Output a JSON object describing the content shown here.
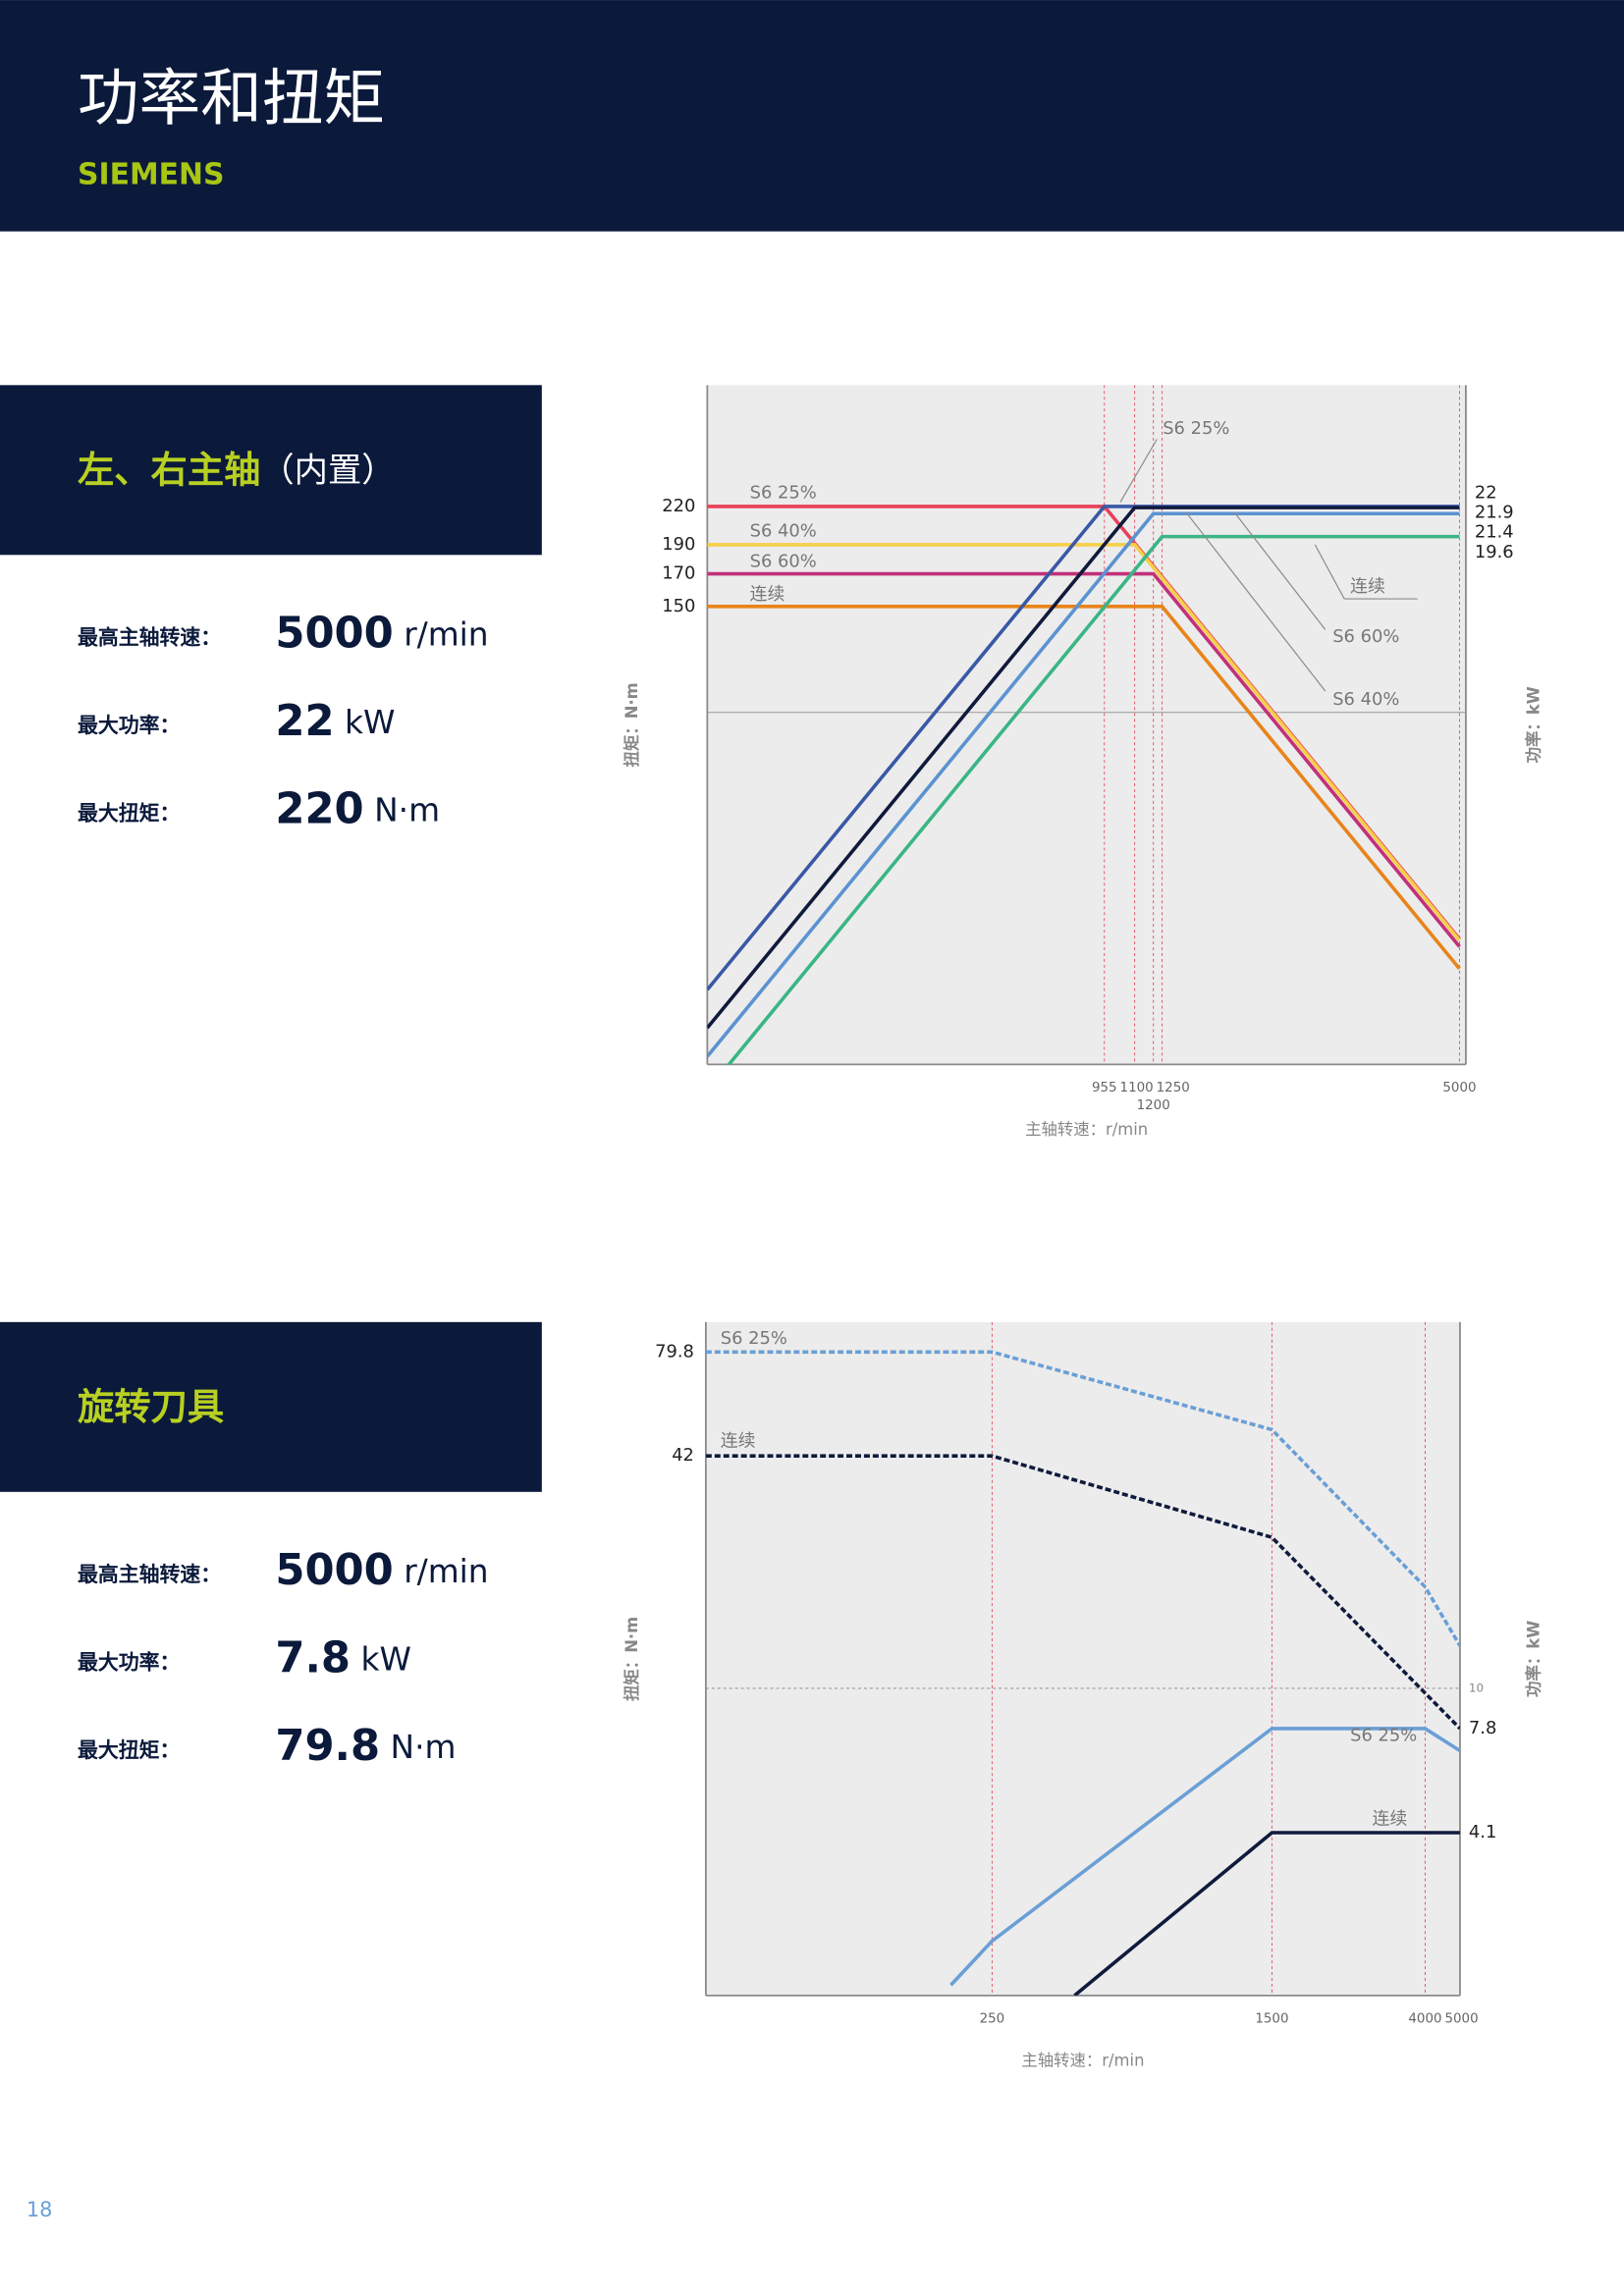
{
  "header": {
    "title": "功率和扭矩",
    "brand": "SIEMENS"
  },
  "sections": [
    {
      "title": "左、右主轴",
      "subtitle": "（内置）",
      "specs": [
        {
          "label": "最高主轴转速：",
          "value": 5000,
          "unit": "r/min"
        },
        {
          "label": "最大功率：",
          "value": 22,
          "unit": "kW"
        },
        {
          "label": "最大扭矩：",
          "value": 220,
          "unit": "N·m"
        }
      ]
    },
    {
      "title": "旋转刀具",
      "specs": [
        {
          "label": "最高主轴转速：",
          "value": 5000,
          "unit": "r/min"
        },
        {
          "label": "最大功率：",
          "value": 7.8,
          "unit": "kW"
        },
        {
          "label": "最大扭矩：",
          "value": 79.8,
          "unit": "N·m"
        }
      ]
    }
  ],
  "chart_data": [
    {
      "type": "line",
      "x_label": "主轴转速：r/min",
      "y_label": "扭矩：N·m",
      "y2_label": "功率：kW",
      "xscale": "log",
      "yscale": "log",
      "xlim": [
        150,
        5150
      ],
      "ylim": [
        26,
        350
      ],
      "y2lim": [
        2.6,
        35
      ],
      "xticks": [
        955,
        1100,
        1200,
        1250,
        5000
      ],
      "yticks": [
        150,
        170,
        190,
        220
      ],
      "y2ticks": [
        19.6,
        21.4,
        21.9,
        22
      ],
      "y2_gridlines": [
        10
      ],
      "series": [
        {
          "name": "S6 25%",
          "color": "#e8405a",
          "x": [
            150,
            955,
            5000
          ],
          "values": [
            220,
            220,
            42
          ]
        },
        {
          "name": "S6 40%",
          "color": "#f5cf48",
          "x": [
            150,
            1100,
            5000
          ],
          "values": [
            190,
            190,
            41.8
          ]
        },
        {
          "name": "S6 60%",
          "color": "#c2307a",
          "x": [
            150,
            1200,
            5000
          ],
          "values": [
            170,
            170,
            40.8
          ]
        },
        {
          "name": "连续",
          "color": "#e8841a",
          "x": [
            150,
            1250,
            5000
          ],
          "values": [
            150,
            150,
            37.5
          ]
        },
        {
          "name": "S6 25%",
          "color": "#3a58a6",
          "axis": "y2",
          "x": [
            150,
            955,
            5000
          ],
          "values": [
            3.46,
            22,
            22
          ]
        },
        {
          "name": "S6 40%",
          "color": "#101a3c",
          "axis": "y2",
          "x": [
            150,
            1100,
            5000
          ],
          "values": [
            2.99,
            21.9,
            21.9
          ]
        },
        {
          "name": "S6 60%",
          "color": "#5b93d0",
          "axis": "y2",
          "x": [
            150,
            1200,
            5000
          ],
          "values": [
            2.68,
            21.4,
            21.4
          ]
        },
        {
          "name": "连续",
          "color": "#3bb585",
          "axis": "y2",
          "x": [
            150,
            1250,
            5000
          ],
          "values": [
            2.35,
            19.6,
            19.6
          ]
        }
      ]
    },
    {
      "type": "line",
      "x_label": "主轴转速：r/min",
      "y_label": "扭矩：N·m",
      "y2_label": "功率：kW",
      "xscale": "log",
      "yscale": "log",
      "xlim": [
        40,
        5000
      ],
      "ylim": [
        1.5,
        96
      ],
      "y2lim": [
        1.5,
        96
      ],
      "xticks": [
        250,
        1500,
        4000,
        5000
      ],
      "yticks": [
        42,
        79.8
      ],
      "y2ticks": [
        4.1,
        7.8,
        10
      ],
      "y2_gridlines": [
        10
      ],
      "series": [
        {
          "name": "S6 25%",
          "color": "#6a9fd6",
          "dash": true,
          "x": [
            40,
            250,
            1500,
            4000,
            5000
          ],
          "values": [
            79.8,
            79.8,
            49.4,
            18.7,
            13
          ]
        },
        {
          "name": "连续",
          "color": "#101a3c",
          "dash": true,
          "x": [
            40,
            250,
            1500,
            5000
          ],
          "values": [
            42,
            42,
            25.4,
            7.8
          ]
        },
        {
          "name": "S6 25%",
          "color": "#6a9fd6",
          "axis": "y2",
          "x": [
            192,
            250,
            1500,
            4000,
            5000
          ],
          "values": [
            1.6,
            2.1,
            7.8,
            7.8,
            6.8
          ]
        },
        {
          "name": "连续",
          "color": "#101a3c",
          "axis": "y2",
          "x": [
            424,
            1500,
            5000
          ],
          "values": [
            1.5,
            4.1,
            4.1
          ]
        }
      ]
    }
  ],
  "page_number": "18"
}
